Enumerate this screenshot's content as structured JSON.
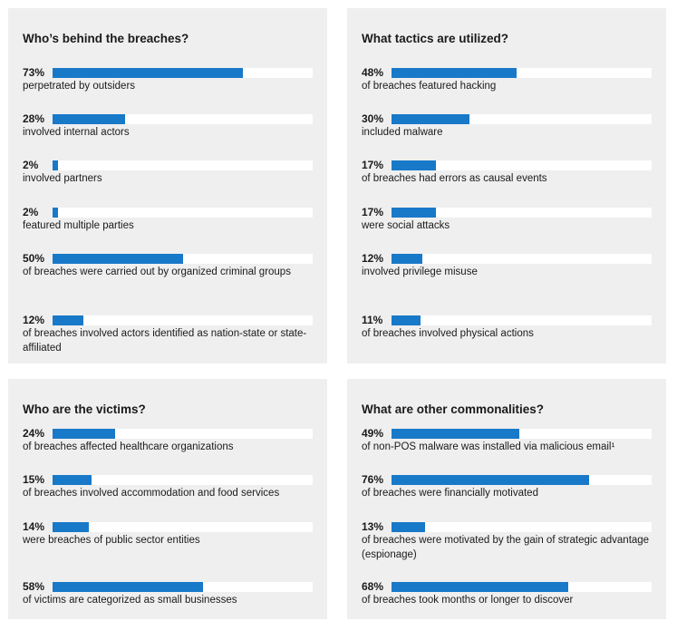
{
  "accent": "#1879c9",
  "panel_bg": "#efefef",
  "chart_data": [
    {
      "type": "bar",
      "title": "Who’s behind the breaches?",
      "ylim": [
        0,
        100
      ],
      "items": [
        {
          "label": "73%",
          "value": 73,
          "desc": "perpetrated by outsiders"
        },
        {
          "label": "28%",
          "value": 28,
          "desc": "involved internal actors"
        },
        {
          "label": "2%",
          "value": 2,
          "desc": "involved partners"
        },
        {
          "label": "2%",
          "value": 2,
          "desc": "featured multiple parties"
        },
        {
          "label": "50%",
          "value": 50,
          "desc": "of breaches were carried out by organized criminal groups"
        },
        {
          "label": "12%",
          "value": 12,
          "desc": "of breaches involved actors identified as nation-state or state-affiliated"
        }
      ]
    },
    {
      "type": "bar",
      "title": "What tactics are utilized?",
      "ylim": [
        0,
        100
      ],
      "items": [
        {
          "label": "48%",
          "value": 48,
          "desc": "of breaches featured hacking"
        },
        {
          "label": "30%",
          "value": 30,
          "desc": "included malware"
        },
        {
          "label": "17%",
          "value": 17,
          "desc": "of breaches had errors as causal events"
        },
        {
          "label": "17%",
          "value": 17,
          "desc": "were social attacks"
        },
        {
          "label": "12%",
          "value": 12,
          "desc": "involved privilege misuse"
        },
        {
          "label": "11%",
          "value": 11,
          "desc": "of breaches involved physical actions"
        }
      ]
    },
    {
      "type": "bar",
      "title": "Who are the victims?",
      "ylim": [
        0,
        100
      ],
      "items": [
        {
          "label": "24%",
          "value": 24,
          "desc": "of breaches affected healthcare organizations"
        },
        {
          "label": "15%",
          "value": 15,
          "desc": "of breaches involved accommodation and food services"
        },
        {
          "label": "14%",
          "value": 14,
          "desc": "were breaches of public sector entities"
        },
        {
          "label": "58%",
          "value": 58,
          "desc": "of victims are categorized as small businesses"
        }
      ]
    },
    {
      "type": "bar",
      "title": "What are other commonalities?",
      "ylim": [
        0,
        100
      ],
      "items": [
        {
          "label": "49%",
          "value": 49,
          "desc": "of non-POS malware was installed via malicious email¹"
        },
        {
          "label": "76%",
          "value": 76,
          "desc": "of breaches were financially motivated"
        },
        {
          "label": "13%",
          "value": 13,
          "desc": "of breaches were motivated by the gain of strategic advantage (espionage)"
        },
        {
          "label": "68%",
          "value": 68,
          "desc": "of breaches took months or longer to discover"
        }
      ]
    }
  ]
}
